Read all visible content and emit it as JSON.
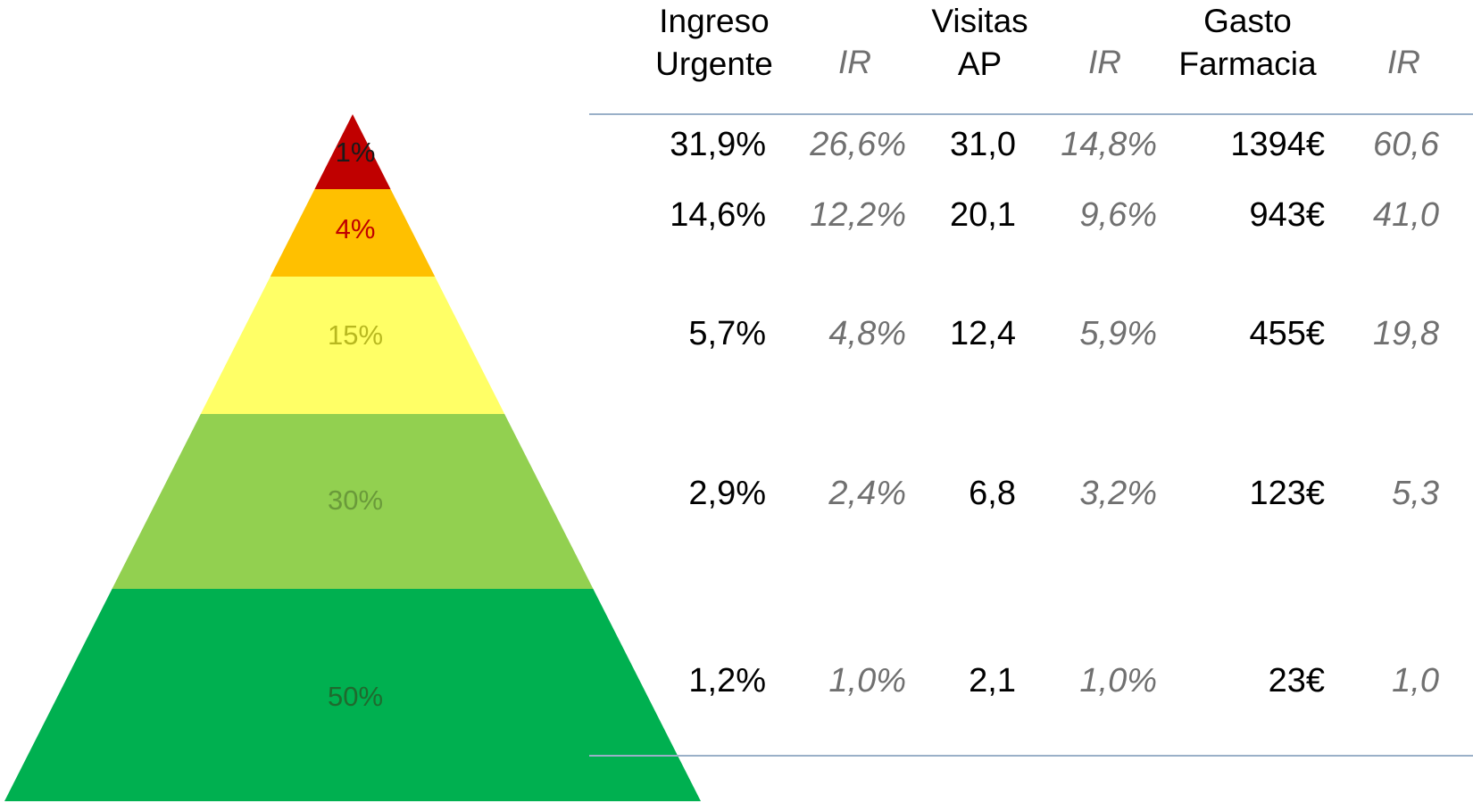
{
  "pyramid": {
    "segments": [
      {
        "label": "1%",
        "fill": "#c00000",
        "label_color": "#1a1a1a"
      },
      {
        "label": "4%",
        "fill": "#ffc000",
        "label_color": "#c00000"
      },
      {
        "label": "15%",
        "fill": "#ffff66",
        "label_color": "#b8b820"
      },
      {
        "label": "30%",
        "fill": "#92d050",
        "label_color": "#6a9a3a"
      },
      {
        "label": "50%",
        "fill": "#00b050",
        "label_color": "#1f6a2e"
      }
    ]
  },
  "table": {
    "headers": {
      "ingreso": [
        "Ingreso",
        "Urgente"
      ],
      "ir1": "IR",
      "visitas": [
        "Visitas",
        "AP"
      ],
      "ir2": "IR",
      "gasto": [
        "Gasto",
        "Farmacia"
      ],
      "ir3": "IR"
    },
    "rows": [
      {
        "ingreso": "31,9%",
        "ir1": "26,6%",
        "visitas": "31,0",
        "ir2": "14,8%",
        "gasto": "1394€",
        "ir3": "60,6"
      },
      {
        "ingreso": "14,6%",
        "ir1": "12,2%",
        "visitas": "20,1",
        "ir2": "9,6%",
        "gasto": "943€",
        "ir3": "41,0"
      },
      {
        "ingreso": "5,7%",
        "ir1": "4,8%",
        "visitas": "12,4",
        "ir2": "5,9%",
        "gasto": "455€",
        "ir3": "19,8"
      },
      {
        "ingreso": "2,9%",
        "ir1": "2,4%",
        "visitas": "6,8",
        "ir2": "3,2%",
        "gasto": "123€",
        "ir3": "5,3"
      },
      {
        "ingreso": "1,2%",
        "ir1": "1,0%",
        "visitas": "2,1",
        "ir2": "1,0%",
        "gasto": "23€",
        "ir3": "1,0"
      }
    ]
  },
  "colors": {
    "rule": "#9ab0c8",
    "ir_text": "#707070"
  }
}
